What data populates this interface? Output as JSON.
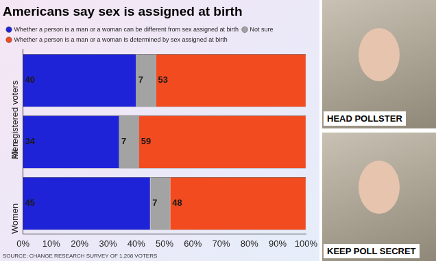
{
  "chart_data": {
    "type": "bar",
    "title": "Americans say sex is assigned at birth",
    "source": "SOURCE: CHANGE RESEARCH SURVEY OF 1,208 VOTERS",
    "categories": [
      "All registered voters",
      "Men",
      "Women"
    ],
    "series": [
      {
        "name": "Whether a person is a man or a woman can be different from sex assigned at birth",
        "color": "#1f23d8",
        "values": [
          40,
          34,
          45
        ]
      },
      {
        "name": "Not sure",
        "color": "#a3a3a3",
        "values": [
          7,
          7,
          7
        ]
      },
      {
        "name": "Whether a person is a man or a woman is determined by sex assigned at birth",
        "color": "#f24b1f",
        "values": [
          53,
          59,
          48
        ]
      }
    ],
    "orientation": "horizontal",
    "stacked": true,
    "data_labels": true,
    "grid": false,
    "legend": "top",
    "xlim": [
      0,
      100
    ],
    "xticks": [
      {
        "value": 0,
        "label": "0%"
      },
      {
        "value": 10,
        "label": "10%"
      },
      {
        "value": 20,
        "label": "20%"
      },
      {
        "value": 30,
        "label": "30%"
      },
      {
        "value": 40,
        "label": "40%"
      },
      {
        "value": 50,
        "label": "50%"
      },
      {
        "value": 60,
        "label": "60%"
      },
      {
        "value": 70,
        "label": "70%"
      },
      {
        "value": 80,
        "label": "80%"
      },
      {
        "value": 90,
        "label": "90%"
      },
      {
        "value": 100,
        "label": "100%"
      }
    ]
  },
  "photo_captions": [
    "HEAD POLLSTER",
    "KEEP POLL SECRET"
  ]
}
